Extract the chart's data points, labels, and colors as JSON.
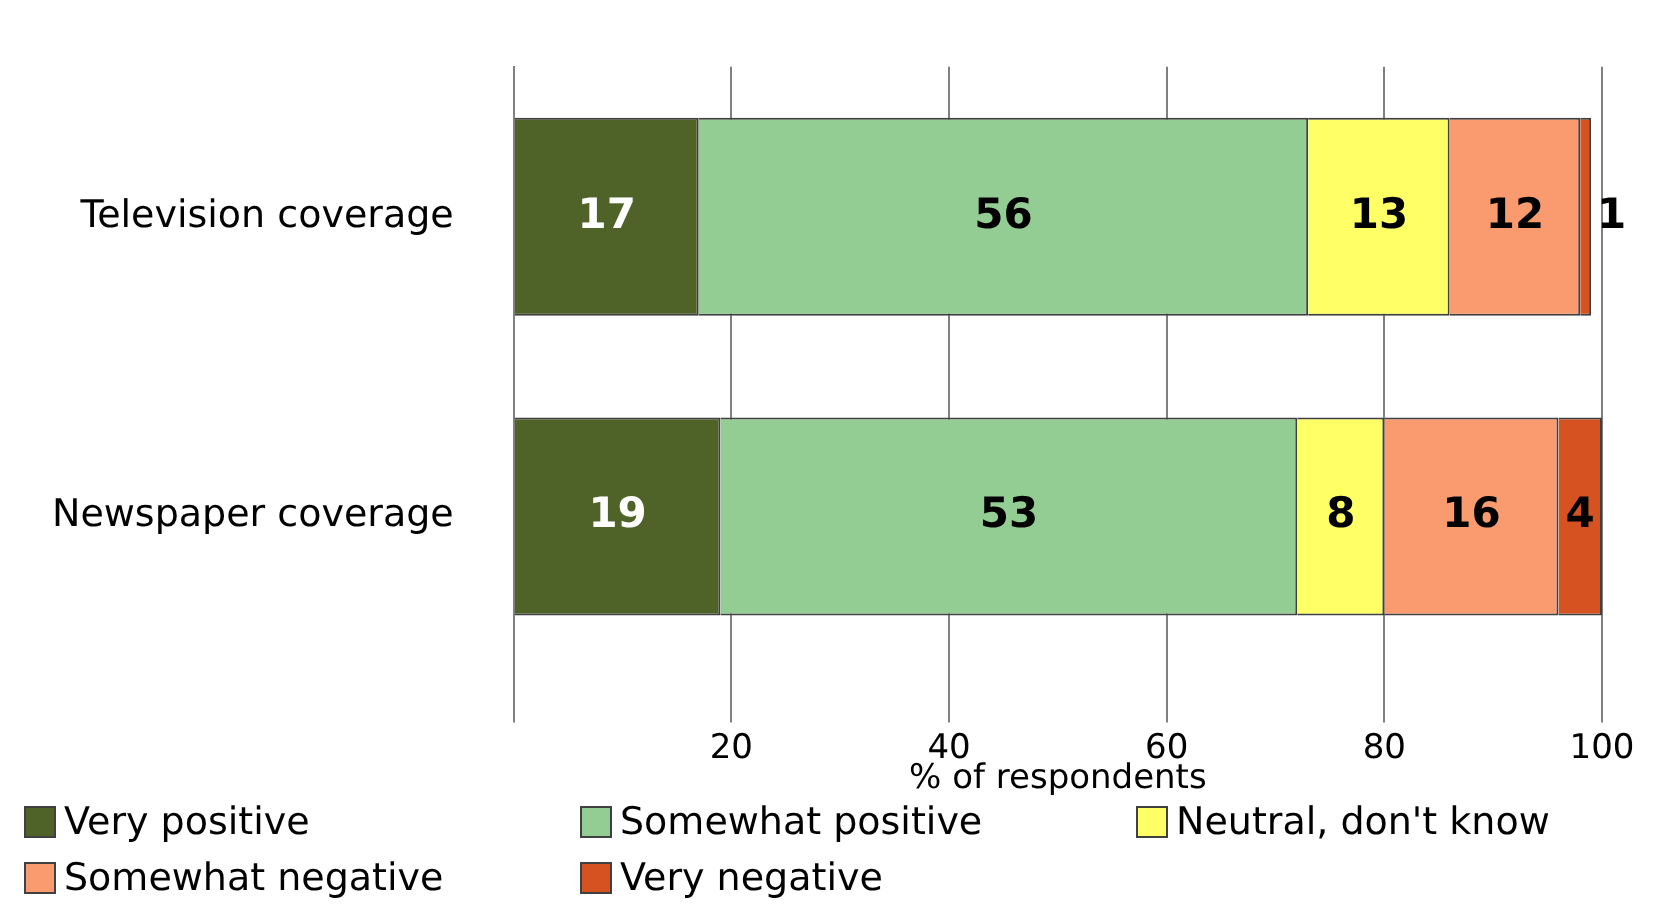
{
  "chart_data": {
    "type": "bar",
    "orientation": "horizontal",
    "stacked": true,
    "xlabel": "% of respondents",
    "categories": [
      "Television coverage",
      "Newspaper coverage"
    ],
    "series": [
      {
        "name": "Very positive",
        "color": "#4f6228",
        "values": [
          17,
          19
        ]
      },
      {
        "name": "Somewhat positive",
        "color": "#93cd93",
        "values": [
          56,
          53
        ]
      },
      {
        "name": "Neutral, don't know",
        "color": "#ffff66",
        "values": [
          13,
          8
        ]
      },
      {
        "name": "Somewhat negative",
        "color": "#f99b6f",
        "values": [
          12,
          16
        ]
      },
      {
        "name": "Very negative",
        "color": "#d65220",
        "values": [
          1,
          4
        ]
      }
    ],
    "xlim": [
      0,
      100
    ],
    "xticks": [
      {
        "value": 0,
        "label": null
      },
      20,
      40,
      60,
      80,
      100
    ],
    "grid": "x",
    "legend": "bottom",
    "data_labels": true
  }
}
